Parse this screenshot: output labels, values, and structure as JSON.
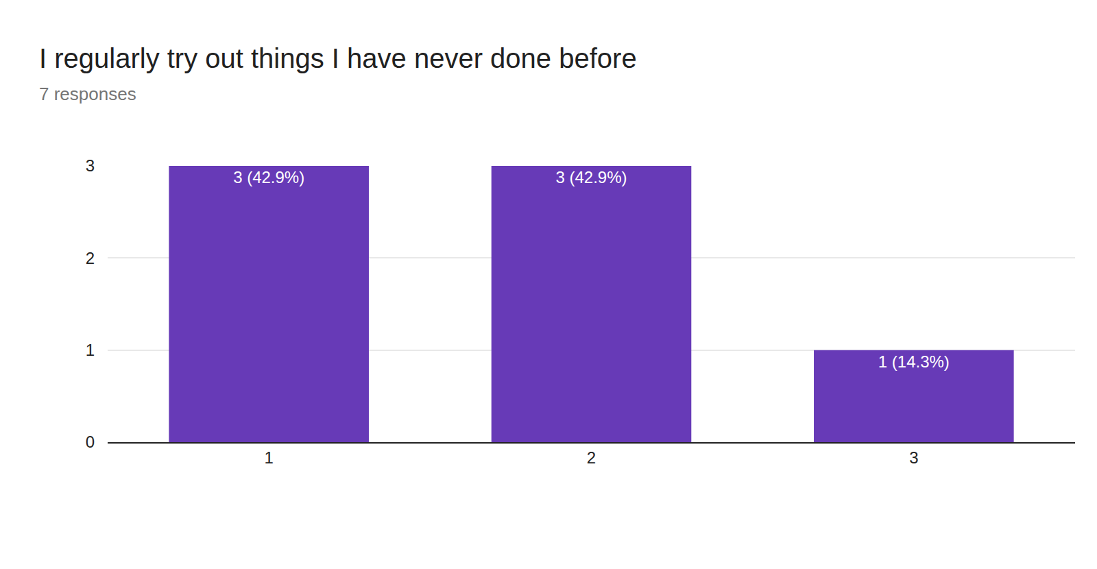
{
  "chart_data": {
    "type": "bar",
    "title": "I regularly try out things I have never done before",
    "subtitle": "7 responses",
    "categories": [
      "1",
      "2",
      "3"
    ],
    "values": [
      3,
      3,
      1
    ],
    "value_labels": [
      "3 (42.9%)",
      "3 (42.9%)",
      "1 (14.3%)"
    ],
    "data_labels": true,
    "color": "#673ab7",
    "ylim": [
      0,
      3
    ],
    "yticks": [
      0,
      1,
      2,
      3
    ],
    "grid": true
  }
}
